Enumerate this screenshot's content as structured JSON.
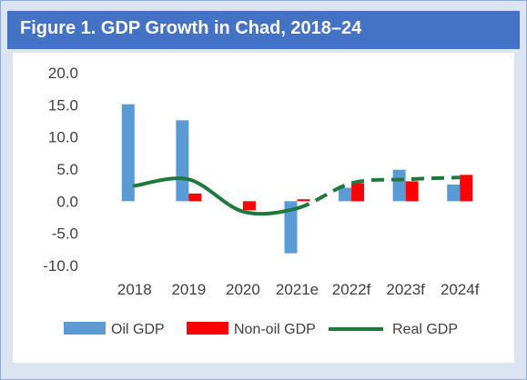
{
  "title": "Figure 1. GDP Growth in Chad, 2018–24",
  "chart_data": {
    "type": "bar",
    "title": "Figure 1. GDP Growth in Chad, 2018–24",
    "categories": [
      "2018",
      "2019",
      "2020",
      "2021e",
      "2022f",
      "2023f",
      "2024f"
    ],
    "ylim": [
      -10,
      20
    ],
    "yticks": [
      20,
      15,
      10,
      5,
      0,
      -5,
      -10
    ],
    "ytick_labels": [
      "20.0",
      "15.0",
      "10.0",
      "5.0",
      "0.0",
      "-5.0",
      "-10.0"
    ],
    "xlabel": "",
    "ylabel": "",
    "grid": false,
    "legend_position": "bottom",
    "series": [
      {
        "name": "Oil GDP",
        "kind": "bar",
        "color": "#5b9bd5",
        "values": [
          15.1,
          12.6,
          null,
          -8.1,
          2.1,
          4.9,
          2.6
        ]
      },
      {
        "name": "Non-oil GDP",
        "kind": "bar",
        "color": "#ff0000",
        "values": [
          null,
          1.2,
          -1.4,
          0.3,
          2.8,
          3.1,
          4.1
        ]
      },
      {
        "name": "Real GDP",
        "kind": "line",
        "color": "#1e7a3c",
        "values": [
          2.4,
          3.4,
          -1.6,
          -1.1,
          2.8,
          3.4,
          3.7
        ],
        "dashed_from_index": 3
      }
    ]
  }
}
